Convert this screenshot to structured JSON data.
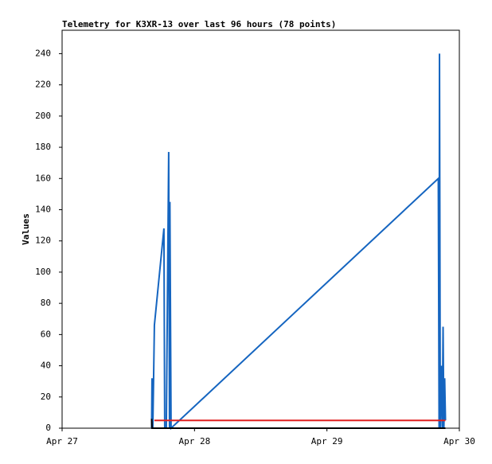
{
  "chart_data": {
    "type": "line",
    "title": "Telemetry for K3XR-13 over last 96 hours (78 points)",
    "y_label": "Values",
    "xlim": [
      0,
      3
    ],
    "xticks": [
      {
        "value": 0,
        "label": "Apr 27"
      },
      {
        "value": 1,
        "label": "Apr 28"
      },
      {
        "value": 2,
        "label": "Apr 29"
      },
      {
        "value": 3,
        "label": "Apr 30"
      }
    ],
    "ylim": [
      0,
      255
    ],
    "yticks": [
      0,
      20,
      40,
      60,
      80,
      100,
      120,
      140,
      160,
      180,
      200,
      220,
      240
    ],
    "series": [
      {
        "color": "#1565c0",
        "x": [
          0.676,
          0.679,
          0.685,
          0.691,
          0.697,
          0.769,
          0.775,
          0.787,
          0.805,
          0.811,
          0.814,
          0.823,
          2.841,
          2.847,
          2.85,
          2.856,
          2.865,
          2.871,
          2.877,
          2.883,
          2.889,
          2.895
        ],
        "values": [
          0,
          32,
          0,
          32,
          66,
          128,
          0,
          0,
          177,
          0,
          145,
          0,
          160,
          0,
          240,
          0,
          40,
          0,
          65,
          0,
          32,
          5
        ]
      },
      {
        "color": "#e02020",
        "x": [
          0.697,
          2.895
        ],
        "values": [
          5,
          5
        ]
      },
      {
        "color": "#000000",
        "x": [
          0.676,
          0.679,
          2.895
        ],
        "values": [
          6,
          0,
          0
        ]
      }
    ]
  }
}
